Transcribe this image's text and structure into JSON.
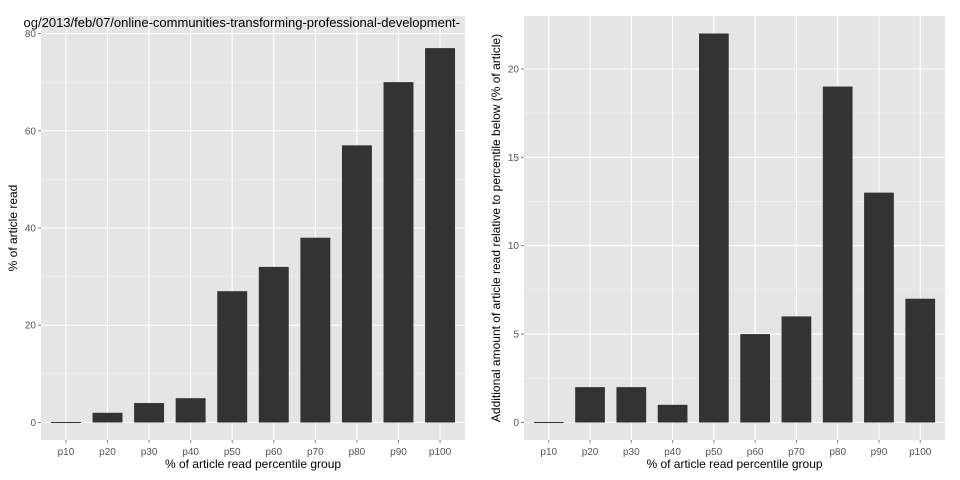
{
  "chart_data": [
    {
      "type": "bar",
      "title": "og/2013/feb/07/online-communities-transforming-professional-development-",
      "categories": [
        "p10",
        "p20",
        "p30",
        "p40",
        "p50",
        "p60",
        "p70",
        "p80",
        "p90",
        "p100"
      ],
      "values": [
        0,
        2,
        4,
        5,
        27,
        32,
        38,
        57,
        70,
        77
      ],
      "xlabel": "% of article read percentile group",
      "ylabel": "% of article read",
      "ylim": [
        0,
        80
      ],
      "yticks": [
        0,
        20,
        40,
        60,
        80
      ],
      "grid": true,
      "bar_color": "#333333",
      "panel_color": "#e5e5e5"
    },
    {
      "type": "bar",
      "title": "",
      "categories": [
        "p10",
        "p20",
        "p30",
        "p40",
        "p50",
        "p60",
        "p70",
        "p80",
        "p90",
        "p100"
      ],
      "values": [
        0,
        2,
        2,
        1,
        22,
        5,
        6,
        19,
        13,
        7
      ],
      "xlabel": "% of article read percentile group",
      "ylabel": "Additional amount of article read relative to percentile below (% of article)",
      "ylim": [
        0,
        22
      ],
      "yticks": [
        0,
        5,
        10,
        15,
        20
      ],
      "grid": true,
      "bar_color": "#333333",
      "panel_color": "#e5e5e5"
    }
  ]
}
